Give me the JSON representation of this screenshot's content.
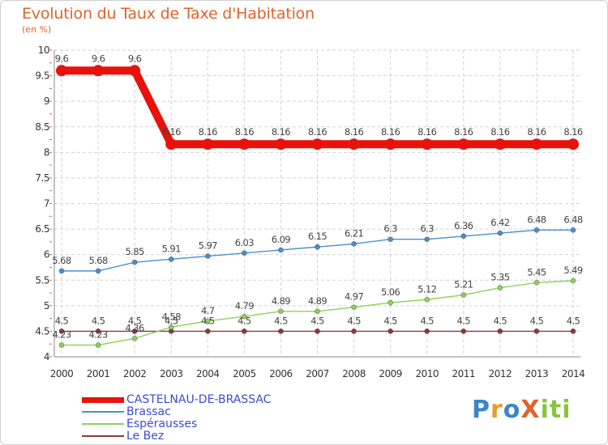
{
  "title": "Evolution du Taux de Taxe d'Habitation",
  "unit_label": "(en %)",
  "brand": "ProXiti",
  "chart_data": {
    "type": "line",
    "title": "Evolution du Taux de Taxe d'Habitation",
    "ylabel": "(en %)",
    "xlabel": "",
    "x": [
      2000,
      2001,
      2002,
      2003,
      2004,
      2005,
      2006,
      2007,
      2008,
      2009,
      2010,
      2011,
      2012,
      2013,
      2014
    ],
    "ylim": [
      4,
      10
    ],
    "yticks": [
      4,
      4.5,
      5,
      5.5,
      6,
      6.5,
      7,
      7.5,
      8,
      8.5,
      9,
      9.5,
      10
    ],
    "grid": true,
    "series": [
      {
        "name": "CASTELNAU-DE-BRASSAC",
        "color": "#e8120c",
        "values": [
          9.6,
          9.6,
          9.6,
          8.16,
          8.16,
          8.16,
          8.16,
          8.16,
          8.16,
          8.16,
          8.16,
          8.16,
          8.16,
          8.16,
          8.16
        ],
        "labels": [
          "9.6",
          "9.6",
          "9.6",
          "8.16",
          "8.16",
          "8.16",
          "8.16",
          "8.16",
          "8.16",
          "8.16",
          "8.16",
          "8.16",
          "8.16",
          "8.16",
          "8.16"
        ],
        "bold": true
      },
      {
        "name": "Brassac",
        "color": "#4d8fcc",
        "values": [
          5.68,
          5.68,
          5.85,
          5.91,
          5.97,
          6.03,
          6.09,
          6.15,
          6.21,
          6.3,
          6.3,
          6.36,
          6.42,
          6.48,
          6.48
        ],
        "labels": [
          "5.68",
          "5.68",
          "5.85",
          "5.91",
          "5.97",
          "6.03",
          "6.09",
          "6.15",
          "6.21",
          "6.3",
          "6.3",
          "6.36",
          "6.42",
          "6.48",
          "6.48"
        ],
        "bold": false
      },
      {
        "name": "Espérausses",
        "color": "#8fd15a",
        "values": [
          4.23,
          4.23,
          4.36,
          4.58,
          4.7,
          4.79,
          4.89,
          4.89,
          4.97,
          5.06,
          5.12,
          5.21,
          5.35,
          5.45,
          5.49
        ],
        "labels": [
          "4.23",
          "4.23",
          "4.36",
          "4.58",
          "4.7",
          "4.79",
          "4.89",
          "4.89",
          "4.97",
          "5.06",
          "5.12",
          "5.21",
          "5.35",
          "5.45",
          "5.49"
        ],
        "bold": false
      },
      {
        "name": "Le Bez",
        "color": "#8c3b3b",
        "values": [
          4.5,
          4.5,
          4.5,
          4.5,
          4.5,
          4.5,
          4.5,
          4.5,
          4.5,
          4.5,
          4.5,
          4.5,
          4.5,
          4.5,
          4.5
        ],
        "labels": [
          "4.5",
          "4.5",
          "4.5",
          "4.5",
          "4.5",
          "4.5",
          "4.5",
          "4.5",
          "4.5",
          "4.5",
          "4.5",
          "4.5",
          "4.5",
          "4.5",
          "4.5"
        ],
        "bold": false
      }
    ]
  }
}
